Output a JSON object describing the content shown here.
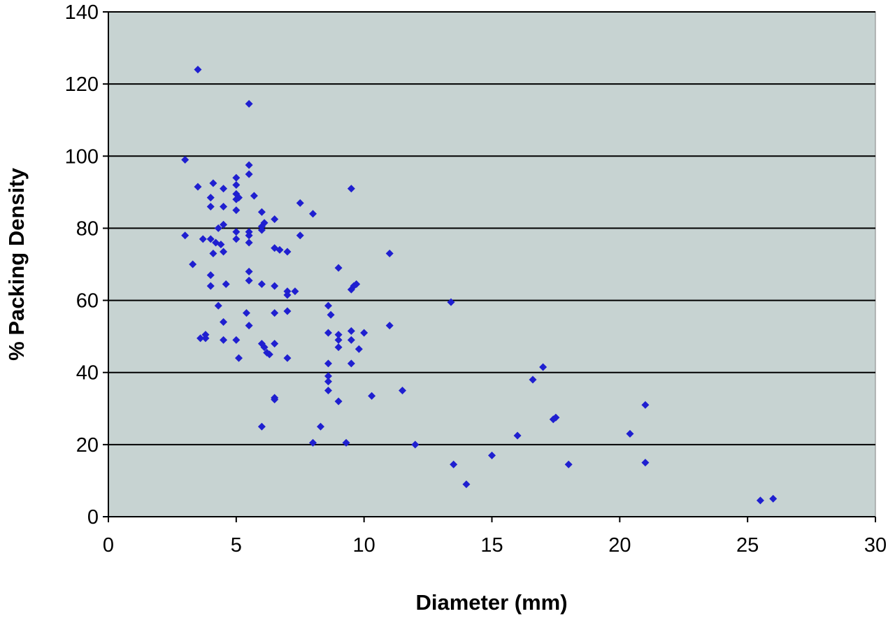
{
  "chart_data": {
    "type": "scatter",
    "title": "",
    "xlabel": "Diameter (mm)",
    "ylabel": "% Packing Density",
    "xlim": [
      0,
      30
    ],
    "ylim": [
      0,
      140
    ],
    "x_ticks": [
      0,
      5,
      10,
      15,
      20,
      25,
      30
    ],
    "y_ticks": [
      0,
      20,
      40,
      60,
      80,
      100,
      120,
      140
    ],
    "x_tick_labels": [
      "0",
      "5",
      "10",
      "15",
      "20",
      "25",
      "30"
    ],
    "y_tick_labels": [
      "0",
      "20",
      "40",
      "60",
      "80",
      "100",
      "120",
      "140"
    ],
    "grid": "horizontal major gridlines",
    "legend": "none",
    "plot_background": "#c7d3d2",
    "marker_color": "#1f1fd0",
    "marker": "diamond",
    "series": [
      {
        "points": [
          [
            3.5,
            124
          ],
          [
            5.5,
            114.5
          ],
          [
            3.0,
            99
          ],
          [
            5.5,
            97.5
          ],
          [
            5.5,
            95
          ],
          [
            5.0,
            94
          ],
          [
            4.1,
            92.5
          ],
          [
            5.0,
            92
          ],
          [
            3.5,
            91.5
          ],
          [
            4.5,
            91
          ],
          [
            9.5,
            91
          ],
          [
            5.0,
            89.5
          ],
          [
            5.7,
            89
          ],
          [
            4.0,
            88.5
          ],
          [
            5.0,
            88
          ],
          [
            5.1,
            88.5
          ],
          [
            7.5,
            87
          ],
          [
            4.0,
            86
          ],
          [
            4.5,
            86
          ],
          [
            5.0,
            85
          ],
          [
            6.0,
            84.5
          ],
          [
            8.0,
            84
          ],
          [
            6.5,
            82.5
          ],
          [
            6.1,
            81.5
          ],
          [
            4.5,
            81
          ],
          [
            6.0,
            80.5
          ],
          [
            4.3,
            80
          ],
          [
            5.0,
            79
          ],
          [
            6.0,
            79.5
          ],
          [
            5.5,
            79
          ],
          [
            3.0,
            78
          ],
          [
            5.5,
            78
          ],
          [
            7.5,
            78
          ],
          [
            3.7,
            77
          ],
          [
            4.0,
            77
          ],
          [
            5.0,
            77
          ],
          [
            4.2,
            76
          ],
          [
            4.4,
            75.5
          ],
          [
            5.5,
            76
          ],
          [
            6.5,
            74.5
          ],
          [
            6.7,
            74
          ],
          [
            7.0,
            73.5
          ],
          [
            4.5,
            73.5
          ],
          [
            4.1,
            73
          ],
          [
            11.0,
            73
          ],
          [
            3.3,
            70
          ],
          [
            9.0,
            69
          ],
          [
            5.5,
            68
          ],
          [
            4.0,
            67
          ],
          [
            5.5,
            65.5
          ],
          [
            9.7,
            64.5
          ],
          [
            4.0,
            64
          ],
          [
            4.6,
            64.5
          ],
          [
            6.0,
            64.5
          ],
          [
            6.5,
            64
          ],
          [
            9.6,
            64
          ],
          [
            9.5,
            63
          ],
          [
            7.0,
            62.5
          ],
          [
            7.3,
            62.5
          ],
          [
            7.0,
            61.5
          ],
          [
            13.4,
            59.5
          ],
          [
            4.3,
            58.5
          ],
          [
            8.6,
            58.5
          ],
          [
            5.4,
            56.5
          ],
          [
            6.5,
            56.5
          ],
          [
            7.0,
            57
          ],
          [
            8.7,
            56
          ],
          [
            4.5,
            54
          ],
          [
            5.5,
            53
          ],
          [
            11.0,
            53
          ],
          [
            9.5,
            51.5
          ],
          [
            8.6,
            51
          ],
          [
            10.0,
            51
          ],
          [
            3.8,
            50.5
          ],
          [
            9.0,
            50.5
          ],
          [
            3.6,
            49.5
          ],
          [
            3.8,
            49.5
          ],
          [
            4.5,
            49
          ],
          [
            5.0,
            49
          ],
          [
            9.0,
            49
          ],
          [
            9.5,
            49
          ],
          [
            6.0,
            48
          ],
          [
            6.5,
            48
          ],
          [
            6.1,
            47
          ],
          [
            9.0,
            47
          ],
          [
            9.8,
            46.5
          ],
          [
            6.2,
            45.5
          ],
          [
            6.3,
            45
          ],
          [
            5.1,
            44
          ],
          [
            7.0,
            44
          ],
          [
            8.6,
            42.5
          ],
          [
            9.5,
            42.5
          ],
          [
            17.0,
            41.5
          ],
          [
            8.6,
            39
          ],
          [
            8.6,
            37.5
          ],
          [
            16.6,
            38
          ],
          [
            11.5,
            35
          ],
          [
            8.6,
            35
          ],
          [
            10.3,
            33.5
          ],
          [
            6.5,
            33
          ],
          [
            6.5,
            32.5
          ],
          [
            9.0,
            32
          ],
          [
            21.0,
            31
          ],
          [
            17.5,
            27.5
          ],
          [
            17.4,
            27
          ],
          [
            6.0,
            25
          ],
          [
            8.3,
            25
          ],
          [
            20.4,
            23
          ],
          [
            16.0,
            22.5
          ],
          [
            8.0,
            20.5
          ],
          [
            9.3,
            20.5
          ],
          [
            12.0,
            20
          ],
          [
            15.0,
            17
          ],
          [
            21.0,
            15
          ],
          [
            13.5,
            14.5
          ],
          [
            18.0,
            14.5
          ],
          [
            14.0,
            9
          ],
          [
            25.5,
            4.5
          ],
          [
            26.0,
            5
          ]
        ]
      }
    ]
  }
}
